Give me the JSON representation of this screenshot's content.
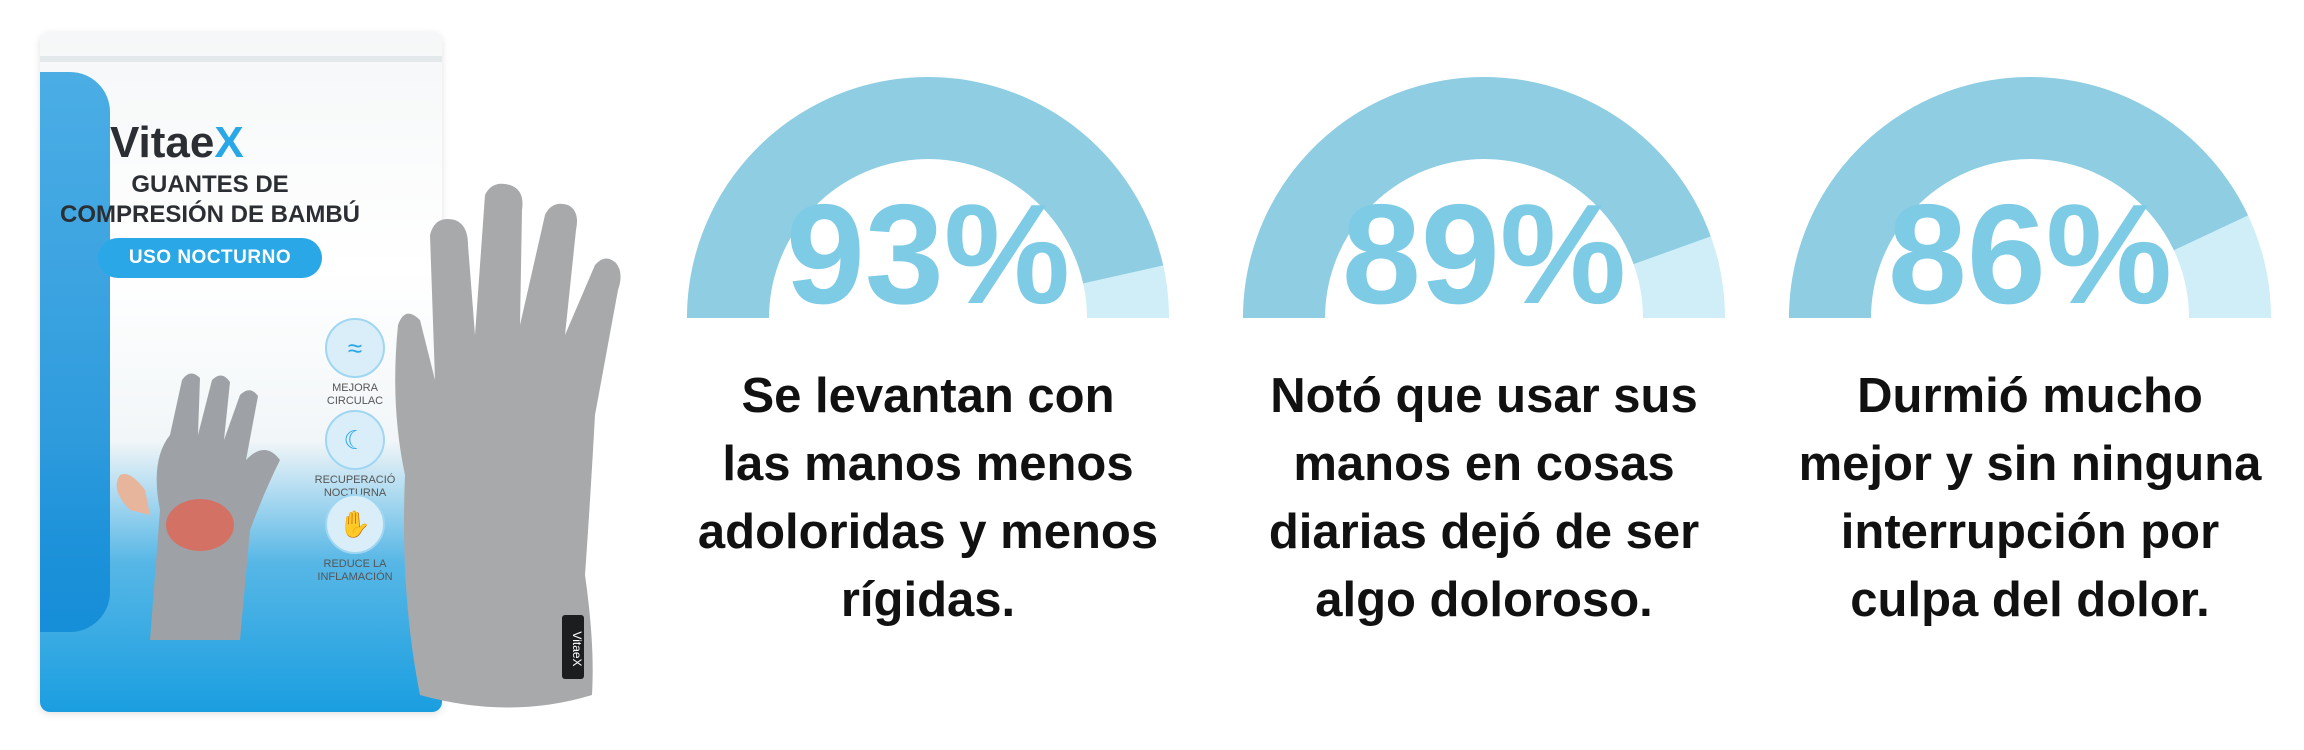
{
  "product": {
    "brand_main": "Vitae",
    "brand_x": "X",
    "subtitle_line1": "GUANTES DE",
    "subtitle_line2": "COMPRESIÓN DE BAMBÚ",
    "pill": "USO NOCTURNO",
    "features": [
      {
        "icon": "waves-icon",
        "label_line1": "MEJORA",
        "label_line2": "CIRCULAC"
      },
      {
        "icon": "moon-icon",
        "label_line1": "RECUPERACIÓ",
        "label_line2": "NOCTURNA"
      },
      {
        "icon": "hand-icon",
        "label_line1": "REDUCE LA",
        "label_line2": "INFLAMACIÓN"
      }
    ],
    "glove_tag": "VitaeX"
  },
  "colors": {
    "gauge_track": "#cfeef8",
    "gauge_fill": "#8ecde2",
    "accent": "#2aa7e6",
    "text": "#111111"
  },
  "stats": [
    {
      "percent": 93,
      "label": "93%",
      "lines": [
        "Se levantan con",
        "las manos menos",
        "adoloridas y menos",
        "rígidas."
      ]
    },
    {
      "percent": 89,
      "label": "89%",
      "lines": [
        "Notó que usar sus",
        "manos en cosas",
        "diarias dejó de ser",
        "algo doloroso."
      ]
    },
    {
      "percent": 86,
      "label": "86%",
      "lines": [
        "Durmió mucho",
        "mejor y sin ninguna",
        "interrupción por",
        "culpa del dolor."
      ]
    }
  ]
}
